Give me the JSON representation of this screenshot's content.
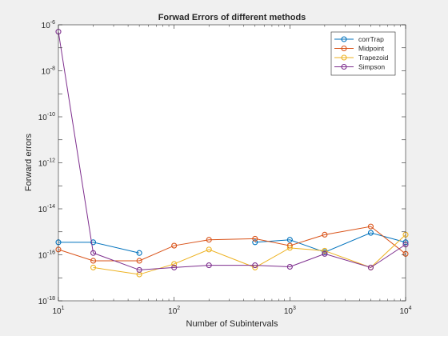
{
  "chart_data": {
    "type": "line",
    "title": "Forwad Errors of different methods",
    "xlabel": "Number of Subintervals",
    "ylabel": "Forward errors",
    "xscale": "log",
    "yscale": "log",
    "xlim": [
      10,
      10000
    ],
    "ylim": [
      1e-18,
      1e-06
    ],
    "grid": false,
    "legend_position": "top-right",
    "x_ticks": [
      {
        "value": 10,
        "base": "10",
        "exp": "1"
      },
      {
        "value": 100,
        "base": "10",
        "exp": "2"
      },
      {
        "value": 1000,
        "base": "10",
        "exp": "3"
      },
      {
        "value": 10000,
        "base": "10",
        "exp": "4"
      }
    ],
    "y_ticks": [
      {
        "value": 1e-18,
        "base": "10",
        "exp": "-18"
      },
      {
        "value": 1e-16,
        "base": "10",
        "exp": "-16"
      },
      {
        "value": 1e-14,
        "base": "10",
        "exp": "-14"
      },
      {
        "value": 1e-12,
        "base": "10",
        "exp": "-12"
      },
      {
        "value": 1e-10,
        "base": "10",
        "exp": "-10"
      },
      {
        "value": 1e-08,
        "base": "10",
        "exp": "-8"
      },
      {
        "value": 1e-06,
        "base": "10",
        "exp": "-6"
      }
    ],
    "x": [
      10,
      20,
      50,
      100,
      200,
      500,
      1000,
      2000,
      5000,
      10000
    ],
    "series": [
      {
        "name": "corrTrap",
        "color": "#0072BD",
        "values": [
          3.5e-16,
          3.5e-16,
          1.2e-16,
          null,
          null,
          3.5e-16,
          4.5e-16,
          1.3e-16,
          9e-16,
          3.5e-16
        ]
      },
      {
        "name": "Midpoint",
        "color": "#D95319",
        "values": [
          1.7e-16,
          5.5e-17,
          5.5e-17,
          2.5e-16,
          4.5e-16,
          5e-16,
          2.5e-16,
          7.5e-16,
          1.7e-15,
          1.1e-16
        ]
      },
      {
        "name": "Trapezoid",
        "color": "#EDB120",
        "values": [
          null,
          2.8e-17,
          1.4e-17,
          4e-17,
          1.7e-16,
          2.8e-17,
          2e-16,
          1.5e-16,
          2.8e-17,
          7.5e-16
        ]
      },
      {
        "name": "Simpson",
        "color": "#7E2F8E",
        "values": [
          5e-07,
          1.2e-16,
          2.2e-17,
          2.8e-17,
          3.5e-17,
          3.5e-17,
          3e-17,
          1.1e-16,
          2.8e-17,
          2.8e-16
        ]
      }
    ]
  }
}
